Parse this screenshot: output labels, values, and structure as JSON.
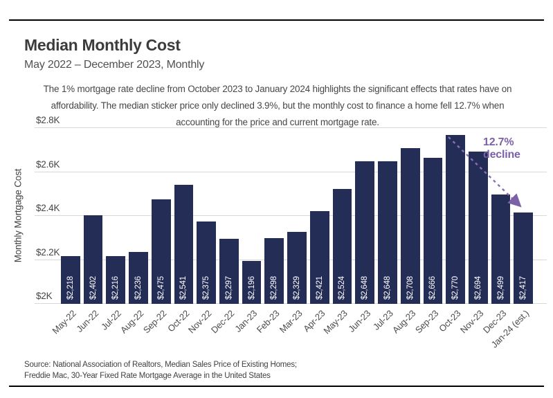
{
  "header": {
    "title": "Median Monthly Cost",
    "subtitle": "May 2022 – December 2023, Monthly"
  },
  "note": {
    "text": "The 1% mortgage rate decline from October 2023 to January 2024 highlights the significant effects that rates have on affordability. The median sticker price only declined 3.9%, but the monthly cost to finance a home fell 12.7% when accounting for the price and current mortgage rate."
  },
  "annotation": {
    "label": "12.7% decline",
    "color": "#7b61a8"
  },
  "chart_data": {
    "type": "bar",
    "title": "Median Monthly Cost",
    "ylabel": "Monthly Mortgage Cost",
    "xlabel": "",
    "ylim": [
      2000,
      2800
    ],
    "grid": true,
    "bar_color": "#232d56",
    "categories": [
      "May-22",
      "Jun-22",
      "Jul-22",
      "Aug-22",
      "Sep-22",
      "Oct-22",
      "Nov-22",
      "Dec-22",
      "Jan-23",
      "Feb-23",
      "Mar-23",
      "Apr-23",
      "May-23",
      "Jun-23",
      "Jul-23",
      "Aug-23",
      "Sep-23",
      "Oct-23",
      "Nov-23",
      "Dec-23",
      "Jan-24 (est.)"
    ],
    "values": [
      2218,
      2402,
      2216,
      2236,
      2475,
      2541,
      2375,
      2297,
      2196,
      2298,
      2329,
      2421,
      2524,
      2648,
      2648,
      2708,
      2666,
      2770,
      2694,
      2499,
      2417
    ],
    "yticks": [
      {
        "label": "$2K",
        "value": 2000
      },
      {
        "label": "$2.2K",
        "value": 2200
      },
      {
        "label": "$2.4K",
        "value": 2400
      },
      {
        "label": "$2.6K",
        "value": 2600
      },
      {
        "label": "$2.8K",
        "value": 2800
      }
    ]
  },
  "source": {
    "line1": "Source: National Association of Realtors, Median Sales Price of Existing Homes;",
    "line2": "Freddie Mac, 30-Year Fixed Rate Mortgage Average in the United States"
  }
}
